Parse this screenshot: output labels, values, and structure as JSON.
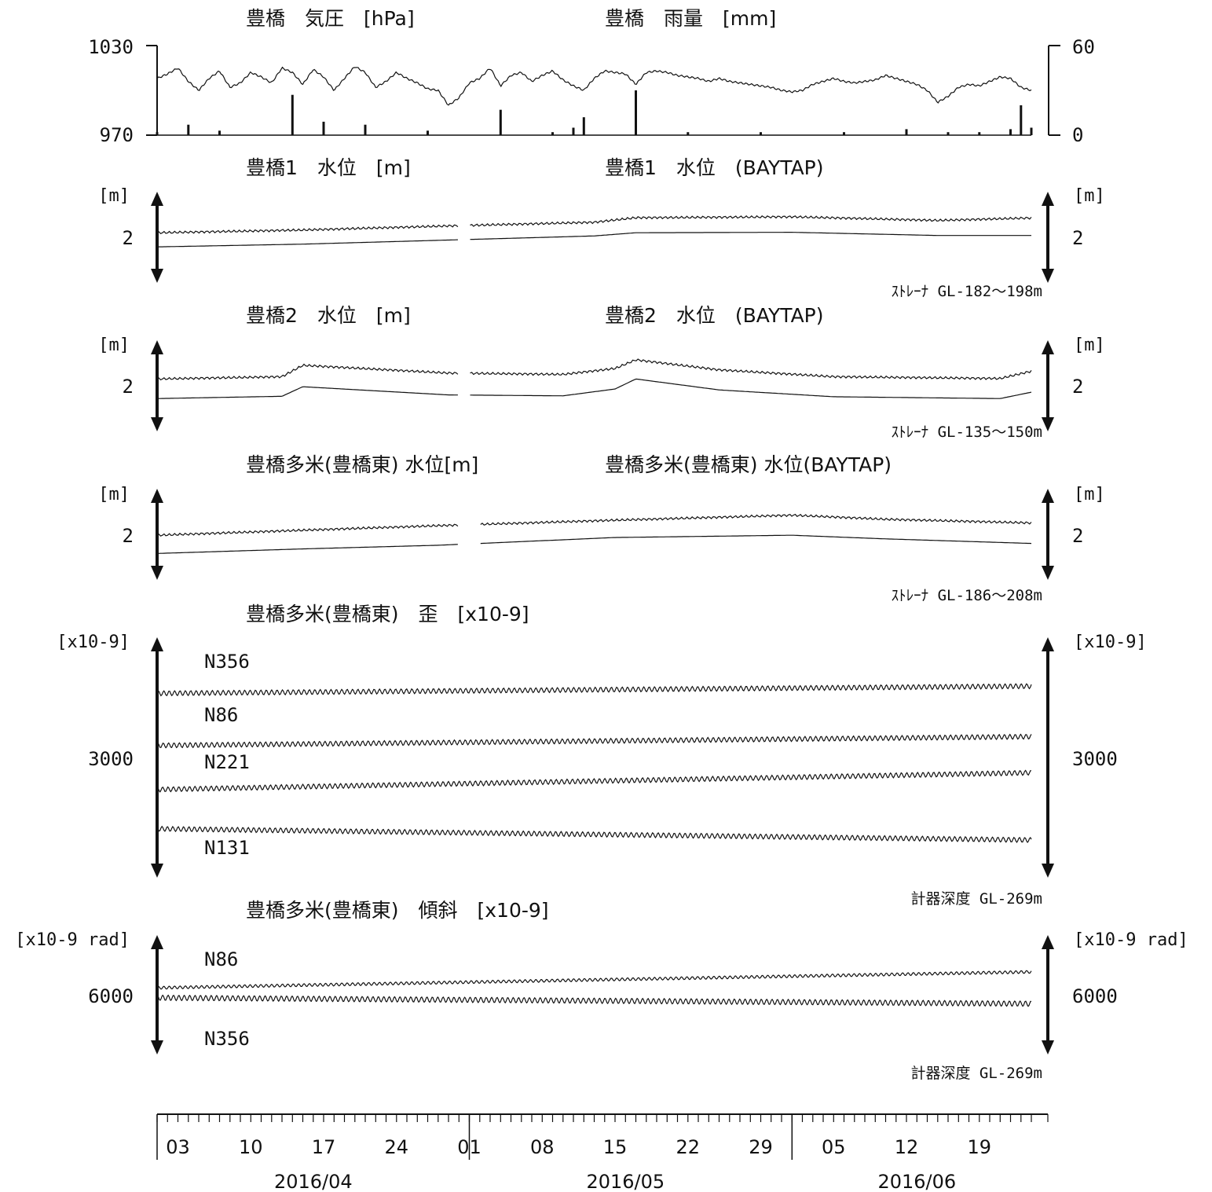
{
  "chart_data": [
    {
      "type": "line",
      "id": "pressure_rain",
      "title": "豊橋　気圧　[hPa]",
      "title2": "豊橋　雨量　[mm]",
      "left_ticks": [
        "1030",
        "970"
      ],
      "right_ticks": [
        "60",
        "0"
      ],
      "ylim_left": [
        970,
        1030
      ],
      "ylim_right": [
        0,
        60
      ],
      "x_start": "2016-04-01",
      "x_end": "2016-06-24",
      "series": [
        {
          "kind": "line",
          "axis": "left",
          "x": [
            "2016-04-01",
            "2016-04-02",
            "2016-04-03",
            "2016-04-04",
            "2016-04-05",
            "2016-04-06",
            "2016-04-07",
            "2016-04-08",
            "2016-04-09",
            "2016-04-10",
            "2016-04-11",
            "2016-04-12",
            "2016-04-13",
            "2016-04-14",
            "2016-04-15",
            "2016-04-16",
            "2016-04-17",
            "2016-04-18",
            "2016-04-19",
            "2016-04-20",
            "2016-04-21",
            "2016-04-22",
            "2016-04-23",
            "2016-04-24",
            "2016-04-25",
            "2016-04-26",
            "2016-04-27",
            "2016-04-28",
            "2016-04-29",
            "2016-04-30",
            "2016-05-01",
            "2016-05-02",
            "2016-05-03",
            "2016-05-04",
            "2016-05-05",
            "2016-05-06",
            "2016-05-07",
            "2016-05-08",
            "2016-05-09",
            "2016-05-10",
            "2016-05-11",
            "2016-05-12",
            "2016-05-13",
            "2016-05-14",
            "2016-05-15",
            "2016-05-16",
            "2016-05-17",
            "2016-05-18",
            "2016-05-19",
            "2016-05-20",
            "2016-05-21",
            "2016-05-22",
            "2016-05-23",
            "2016-05-24",
            "2016-05-25",
            "2016-05-26",
            "2016-05-27",
            "2016-05-28",
            "2016-05-29",
            "2016-05-30",
            "2016-05-31",
            "2016-06-01",
            "2016-06-02",
            "2016-06-03",
            "2016-06-04",
            "2016-06-05",
            "2016-06-06",
            "2016-06-07",
            "2016-06-08",
            "2016-06-09",
            "2016-06-10",
            "2016-06-11",
            "2016-06-12",
            "2016-06-13",
            "2016-06-14",
            "2016-06-15",
            "2016-06-16",
            "2016-06-17",
            "2016-06-18",
            "2016-06-19",
            "2016-06-20",
            "2016-06-21",
            "2016-06-22",
            "2016-06-23",
            "2016-06-24"
          ],
          "values": [
            1008,
            1011,
            1015,
            1006,
            1000,
            1008,
            1013,
            1002,
            1005,
            1012,
            1009,
            1005,
            1015,
            1012,
            1004,
            1014,
            1009,
            1000,
            1008,
            1016,
            1012,
            1002,
            1006,
            1012,
            1008,
            1005,
            1001,
            1000,
            990,
            995,
            1005,
            1008,
            1015,
            1003,
            1010,
            1012,
            1006,
            1010,
            1013,
            1007,
            1003,
            1000,
            1008,
            1013,
            1012,
            1011,
            1004,
            1012,
            1013,
            1012,
            1010,
            1009,
            1008,
            1006,
            1008,
            1006,
            1005,
            1004,
            1003,
            1002,
            1000,
            999,
            1000,
            1004,
            1006,
            1008,
            1006,
            1005,
            1006,
            1007,
            1010,
            1008,
            1006,
            1004,
            1000,
            992,
            996,
            1002,
            1004,
            1003,
            1006,
            1009,
            1008,
            1002,
            1000
          ]
        },
        {
          "kind": "bar",
          "axis": "right",
          "x": [
            "2016-04-01",
            "2016-04-04",
            "2016-04-07",
            "2016-04-14",
            "2016-04-17",
            "2016-04-21",
            "2016-04-27",
            "2016-05-04",
            "2016-05-09",
            "2016-05-11",
            "2016-05-12",
            "2016-05-17",
            "2016-05-22",
            "2016-05-29",
            "2016-06-06",
            "2016-06-12",
            "2016-06-16",
            "2016-06-19",
            "2016-06-22",
            "2016-06-23",
            "2016-06-24"
          ],
          "values": [
            2,
            7,
            3,
            27,
            9,
            7,
            3,
            17,
            2,
            5,
            12,
            30,
            2,
            2,
            2,
            4,
            2,
            2,
            4,
            20,
            5
          ]
        }
      ]
    },
    {
      "type": "line",
      "id": "toyohashi1",
      "title": "豊橋1　水位　[m]",
      "title2": "豊橋1　水位　(BAYTAP)",
      "unit": "[m]",
      "tick": "2",
      "scale_arrow": 2,
      "note": "ｽﾄﾚｰﾅ GL-182～198m",
      "ylim": [
        0,
        4
      ],
      "x_start": "2016-04-01",
      "x_end": "2016-06-24",
      "gap": [
        "2016-04-30",
        "2016-05-01"
      ],
      "series": [
        {
          "x": [
            "2016-04-01",
            "2016-04-15",
            "2016-04-29",
            "2016-05-13",
            "2016-05-17",
            "2016-06-01",
            "2016-06-15",
            "2016-06-24"
          ],
          "values": [
            2.2,
            2.32,
            2.5,
            2.66,
            2.86,
            2.9,
            2.74,
            2.85
          ]
        },
        {
          "x": [
            "2016-04-01",
            "2016-04-15",
            "2016-04-29",
            "2016-05-13",
            "2016-05-17",
            "2016-06-01",
            "2016-06-15",
            "2016-06-24"
          ],
          "values": [
            1.58,
            1.7,
            1.88,
            2.06,
            2.2,
            2.22,
            2.08,
            2.08
          ]
        }
      ]
    },
    {
      "type": "line",
      "id": "toyohashi2",
      "title": "豊橋2　水位　[m]",
      "title2": "豊橋2　水位　(BAYTAP)",
      "unit": "[m]",
      "tick": "2",
      "scale_arrow": 2,
      "note": "ｽﾄﾚｰﾅ GL-135～150m",
      "ylim": [
        0,
        4
      ],
      "x_start": "2016-04-01",
      "x_end": "2016-06-24",
      "gap": [
        "2016-04-30",
        "2016-05-01"
      ],
      "series": [
        {
          "x": [
            "2016-04-01",
            "2016-04-13",
            "2016-04-15",
            "2016-04-29",
            "2016-05-10",
            "2016-05-15",
            "2016-05-17",
            "2016-05-25",
            "2016-06-05",
            "2016-06-21",
            "2016-06-24"
          ],
          "values": [
            2.3,
            2.4,
            2.9,
            2.56,
            2.5,
            2.76,
            3.14,
            2.7,
            2.4,
            2.32,
            2.64
          ]
        },
        {
          "x": [
            "2016-04-01",
            "2016-04-13",
            "2016-04-15",
            "2016-04-29",
            "2016-05-10",
            "2016-05-15",
            "2016-05-17",
            "2016-05-25",
            "2016-06-05",
            "2016-06-21",
            "2016-06-24"
          ],
          "values": [
            1.44,
            1.54,
            1.96,
            1.6,
            1.56,
            1.86,
            2.3,
            1.82,
            1.52,
            1.44,
            1.72
          ]
        }
      ]
    },
    {
      "type": "line",
      "id": "tame_water",
      "title": "豊橋多米(豊橋東) 水位[m]",
      "title2": "豊橋多米(豊橋東) 水位(BAYTAP)",
      "unit": "[m]",
      "tick": "2",
      "scale_arrow": 2,
      "note": "ｽﾄﾚｰﾅ GL-186～208m",
      "ylim": [
        0,
        4
      ],
      "x_start": "2016-04-01",
      "x_end": "2016-06-24",
      "gap": [
        "2016-04-30",
        "2016-05-02"
      ],
      "series": [
        {
          "x": [
            "2016-04-01",
            "2016-04-15",
            "2016-04-28",
            "2016-05-15",
            "2016-06-01",
            "2016-06-10",
            "2016-06-24"
          ],
          "values": [
            1.96,
            2.18,
            2.38,
            2.62,
            2.84,
            2.66,
            2.5
          ]
        },
        {
          "x": [
            "2016-04-01",
            "2016-04-15",
            "2016-04-28",
            "2016-05-15",
            "2016-06-01",
            "2016-06-10",
            "2016-06-24"
          ],
          "values": [
            1.16,
            1.36,
            1.52,
            1.86,
            1.96,
            1.8,
            1.6
          ]
        }
      ]
    },
    {
      "type": "line",
      "id": "tame_strain",
      "title": "豊橋多米(豊橋東)　歪　[x10-9]",
      "unit": "[x10-9]",
      "tick": "3000",
      "scale_arrow": 3000,
      "note": "計器深度 GL-269m",
      "ylim": [
        0,
        6000
      ],
      "x_start": "2016-04-01",
      "x_end": "2016-06-24",
      "series": [
        {
          "name": "N356",
          "x": [
            "2016-04-01",
            "2016-06-24"
          ],
          "values": [
            4600,
            4780
          ]
        },
        {
          "name": "N86",
          "x": [
            "2016-04-01",
            "2016-06-24"
          ],
          "values": [
            3300,
            3520
          ]
        },
        {
          "name": "N221",
          "x": [
            "2016-04-01",
            "2016-06-24"
          ],
          "values": [
            2200,
            2620
          ]
        },
        {
          "name": "N131",
          "x": [
            "2016-04-01",
            "2016-06-24"
          ],
          "values": [
            1220,
            940
          ]
        }
      ]
    },
    {
      "type": "line",
      "id": "tame_tilt",
      "title": "豊橋多米(豊橋東)　傾斜　[x10-9]",
      "unit": "[x10-9 rad]",
      "tick": "6000",
      "scale_arrow": 6000,
      "note": "計器深度 GL-269m",
      "ylim": [
        0,
        12000
      ],
      "x_start": "2016-04-01",
      "x_end": "2016-06-24",
      "series": [
        {
          "name": "N86",
          "x": [
            "2016-04-01",
            "2016-06-24"
          ],
          "values": [
            6700,
            8300
          ]
        },
        {
          "name": "N356",
          "x": [
            "2016-04-01",
            "2016-06-24"
          ],
          "values": [
            5700,
            5100
          ]
        }
      ]
    }
  ],
  "x_axis": {
    "start": "2016-04-01",
    "end": "2016-06-24",
    "day_labels": [
      {
        "date": "2016-04-03",
        "label": "03"
      },
      {
        "date": "2016-04-10",
        "label": "10"
      },
      {
        "date": "2016-04-17",
        "label": "17"
      },
      {
        "date": "2016-04-24",
        "label": "24"
      },
      {
        "date": "2016-05-01",
        "label": "01"
      },
      {
        "date": "2016-05-08",
        "label": "08"
      },
      {
        "date": "2016-05-15",
        "label": "15"
      },
      {
        "date": "2016-05-22",
        "label": "22"
      },
      {
        "date": "2016-05-29",
        "label": "29"
      },
      {
        "date": "2016-06-05",
        "label": "05"
      },
      {
        "date": "2016-06-12",
        "label": "12"
      },
      {
        "date": "2016-06-19",
        "label": "19"
      }
    ],
    "month_labels": [
      {
        "date": "2016-04-16",
        "label": "2016/04"
      },
      {
        "date": "2016-05-16",
        "label": "2016/05"
      },
      {
        "date": "2016-06-13",
        "label": "2016/06"
      }
    ],
    "month_starts": [
      "2016-04-01",
      "2016-05-01",
      "2016-06-01"
    ]
  }
}
